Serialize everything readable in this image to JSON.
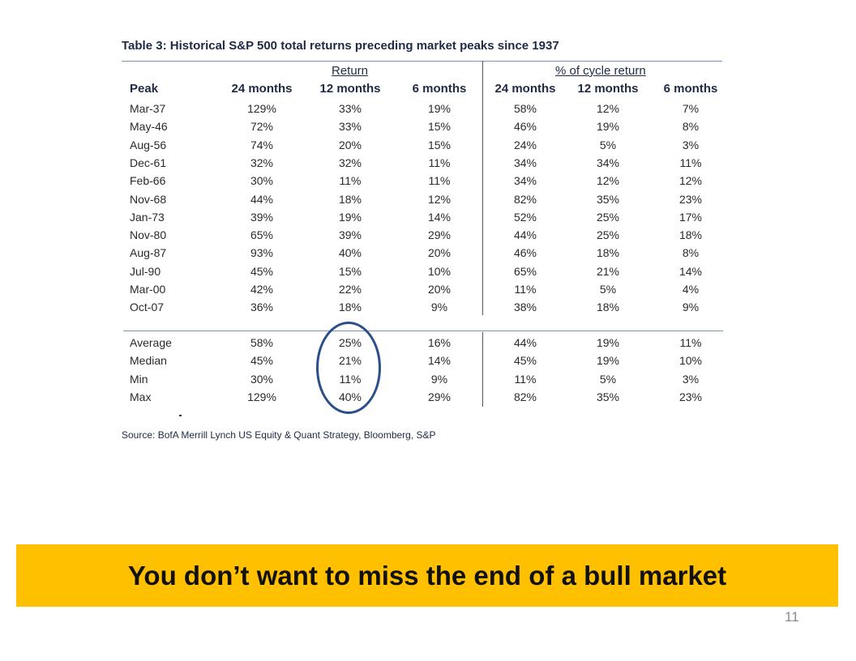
{
  "table": {
    "title": "Table 3: Historical S&P 500 total returns preceding market peaks since 1937",
    "group_return": "Return",
    "group_cycle": "% of cycle return",
    "columns": [
      "Peak",
      "24 months",
      "12 months",
      "6 months",
      "24 months",
      "12 months",
      "6 months"
    ],
    "rows": [
      [
        "Mar-37",
        "129%",
        "33%",
        "19%",
        "58%",
        "12%",
        "7%"
      ],
      [
        "May-46",
        "72%",
        "33%",
        "15%",
        "46%",
        "19%",
        "8%"
      ],
      [
        "Aug-56",
        "74%",
        "20%",
        "15%",
        "24%",
        "5%",
        "3%"
      ],
      [
        "Dec-61",
        "32%",
        "32%",
        "11%",
        "34%",
        "34%",
        "11%"
      ],
      [
        "Feb-66",
        "30%",
        "11%",
        "11%",
        "34%",
        "12%",
        "12%"
      ],
      [
        "Nov-68",
        "44%",
        "18%",
        "12%",
        "82%",
        "35%",
        "23%"
      ],
      [
        "Jan-73",
        "39%",
        "19%",
        "14%",
        "52%",
        "25%",
        "17%"
      ],
      [
        "Nov-80",
        "65%",
        "39%",
        "29%",
        "44%",
        "25%",
        "18%"
      ],
      [
        "Aug-87",
        "93%",
        "40%",
        "20%",
        "46%",
        "18%",
        "8%"
      ],
      [
        "Jul-90",
        "45%",
        "15%",
        "10%",
        "65%",
        "21%",
        "14%"
      ],
      [
        "Mar-00",
        "42%",
        "22%",
        "20%",
        "11%",
        "5%",
        "4%"
      ],
      [
        "Oct-07",
        "36%",
        "18%",
        "9%",
        "38%",
        "18%",
        "9%"
      ]
    ],
    "summary": [
      [
        "Average",
        "58%",
        "25%",
        "16%",
        "44%",
        "19%",
        "11%"
      ],
      [
        "Median",
        "45%",
        "21%",
        "14%",
        "45%",
        "19%",
        "10%"
      ],
      [
        "Min",
        "30%",
        "11%",
        "9%",
        "11%",
        "5%",
        "3%"
      ],
      [
        "Max",
        "129%",
        "40%",
        "29%",
        "82%",
        "35%",
        "23%"
      ]
    ],
    "source": "Source: BofA Merrill Lynch US Equity & Quant Strategy, Bloomberg, S&P"
  },
  "banner": {
    "text": "You don’t want to miss the end of a bull market",
    "color": "#ffc000"
  },
  "page_number": "11",
  "colors": {
    "highlight_circle": "#2a4f8a",
    "rule": "#7c93b8"
  }
}
